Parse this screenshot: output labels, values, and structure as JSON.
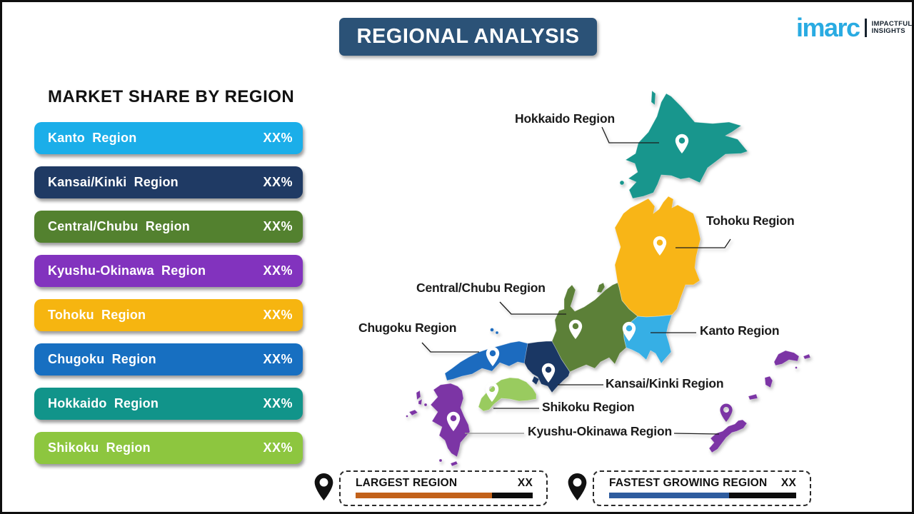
{
  "header": {
    "title": "REGIONAL ANALYSIS",
    "bg_color": "#2B5277"
  },
  "logo": {
    "brand": "imarc",
    "brand_color": "#29ABE2",
    "tagline1": "IMPACTFUL",
    "tagline2": "INSIGHTS"
  },
  "market_share": {
    "heading": "MARKET SHARE BY REGION",
    "items": [
      {
        "label": "Kanto Region",
        "value": "XX%",
        "color": "#1BAEE9"
      },
      {
        "label": "Kansai/Kinki Region",
        "value": "XX%",
        "color": "#1F3A64"
      },
      {
        "label": "Central/Chubu Region",
        "value": "XX%",
        "color": "#53812F"
      },
      {
        "label": "Kyushu-Okinawa Region",
        "value": "XX%",
        "color": "#8233BE"
      },
      {
        "label": "Tohoku Region",
        "value": "XX%",
        "color": "#F6B510"
      },
      {
        "label": "Chugoku Region",
        "value": "XX%",
        "color": "#176FC1"
      },
      {
        "label": "Hokkaido Region",
        "value": "XX%",
        "color": "#11948A"
      },
      {
        "label": "Shikoku Region",
        "value": "XX%",
        "color": "#8DC63F"
      }
    ]
  },
  "map": {
    "colors": {
      "hokkaido": "#18968D",
      "tohoku": "#F8B517",
      "kanto": "#36AFE5",
      "chubu": "#5C8038",
      "kansai": "#1A3764",
      "chugoku": "#1C6BBF",
      "shikoku": "#99CB5F",
      "kyushu": "#7C35A5"
    },
    "pin_color": "#FFFFFF",
    "labels": [
      {
        "id": "hokkaido",
        "text": "Hokkaido Region"
      },
      {
        "id": "tohoku",
        "text": "Tohoku Region"
      },
      {
        "id": "chubu",
        "text": "Central/Chubu Region"
      },
      {
        "id": "chugoku",
        "text": "Chugoku Region"
      },
      {
        "id": "kanto",
        "text": "Kanto Region"
      },
      {
        "id": "kansai",
        "text": "Kansai/Kinki Region"
      },
      {
        "id": "shikoku",
        "text": "Shikoku Region"
      },
      {
        "id": "kyushu",
        "text": "Kyushu-Okinawa Region"
      }
    ]
  },
  "legend": {
    "pin_color": "#111111",
    "items": [
      {
        "label": "LARGEST REGION",
        "value": "XX",
        "bar_color": "#C2611A",
        "bar_fill": "77%"
      },
      {
        "label": "FASTEST GROWING REGION",
        "value": "XX",
        "bar_color": "#2E5C9E",
        "bar_fill": "64%"
      }
    ]
  }
}
